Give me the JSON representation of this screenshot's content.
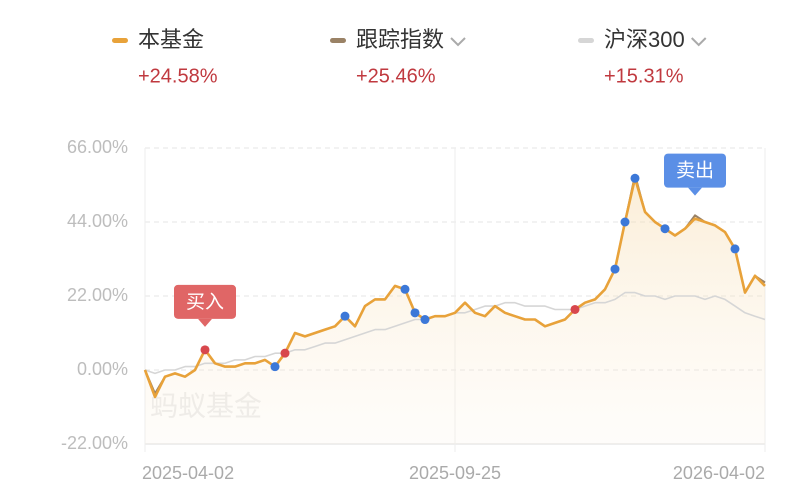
{
  "chart_data": {
    "type": "line",
    "categories": [
      "2025-04-02",
      null,
      null,
      null,
      null,
      null,
      null,
      null,
      null,
      null,
      null,
      null,
      null,
      null,
      null,
      null,
      null,
      null,
      null,
      null,
      null,
      null,
      null,
      null,
      null,
      null,
      null,
      null,
      null,
      null,
      null,
      "2025-09-25",
      null,
      null,
      null,
      null,
      null,
      null,
      null,
      null,
      null,
      null,
      null,
      null,
      null,
      null,
      null,
      null,
      null,
      null,
      null,
      null,
      null,
      null,
      null,
      null,
      null,
      null,
      null,
      null,
      null,
      null,
      "2026-04-02"
    ],
    "series": [
      {
        "name": "本基金",
        "color": "#e8a23a",
        "change": "+24.58%",
        "values": [
          0,
          -8,
          -2,
          -1,
          -2,
          0,
          6,
          2,
          1,
          1,
          2,
          2,
          3,
          1,
          5,
          11,
          10,
          11,
          12,
          13,
          16,
          13,
          19,
          21,
          21,
          25,
          24,
          17,
          15,
          16,
          16,
          17,
          20,
          17,
          16,
          19,
          17,
          16,
          15,
          15,
          13,
          14,
          15,
          18,
          20,
          21,
          24,
          30,
          44,
          57,
          47,
          44,
          42,
          40,
          42,
          45,
          44,
          43,
          41,
          36,
          23,
          28,
          25
        ]
      },
      {
        "name": "跟踪指数",
        "color": "#9a8266",
        "change": "+25.46%",
        "values": [
          0,
          -7,
          -2,
          -1,
          -2,
          0,
          6,
          2,
          1,
          1,
          2,
          2,
          3,
          1,
          5,
          11,
          10,
          11,
          12,
          13,
          16,
          13,
          19,
          21,
          21,
          25,
          24,
          17,
          15,
          16,
          16,
          17,
          20,
          17,
          16,
          19,
          17,
          16,
          15,
          15,
          13,
          14,
          15,
          18,
          20,
          21,
          24,
          30,
          44,
          58,
          47,
          44,
          42,
          40,
          42,
          46,
          44,
          43,
          41,
          36,
          23,
          28,
          26
        ]
      },
      {
        "name": "沪深300",
        "color": "#d6d6d6",
        "change": "+15.31%",
        "values": [
          0,
          -1,
          0,
          0,
          1,
          1,
          2,
          2,
          2,
          3,
          3,
          4,
          4,
          5,
          5,
          6,
          6,
          7,
          8,
          8,
          9,
          10,
          11,
          12,
          12,
          13,
          14,
          15,
          15,
          16,
          16,
          17,
          17,
          18,
          19,
          19,
          20,
          20,
          19,
          19,
          19,
          18,
          18,
          18,
          19,
          20,
          20,
          21,
          23,
          23,
          22,
          22,
          21,
          22,
          22,
          22,
          21,
          22,
          21,
          19,
          17,
          16,
          15
        ]
      }
    ],
    "buy_points": [
      6,
      14,
      43
    ],
    "sell_points": [
      13,
      20,
      26,
      27,
      28,
      47,
      48,
      49,
      52,
      59
    ],
    "buy_color": "#d8474d",
    "sell_color": "#3c78d8",
    "annotations": [
      {
        "text": "买入",
        "index": 6,
        "color": "#e06666"
      },
      {
        "text": "卖出",
        "index": 55,
        "color": "#5b8fe6"
      }
    ],
    "watermark": "蚂蚁基金",
    "ylim": [
      -22,
      66
    ],
    "yticks": [
      {
        "value": -22,
        "label": "-22.00%"
      },
      {
        "value": 0,
        "label": "0.00%"
      },
      {
        "value": 22,
        "label": "22.00%"
      },
      {
        "value": 44,
        "label": "44.00%"
      },
      {
        "value": 66,
        "label": "66.00%"
      }
    ],
    "grid": true
  }
}
